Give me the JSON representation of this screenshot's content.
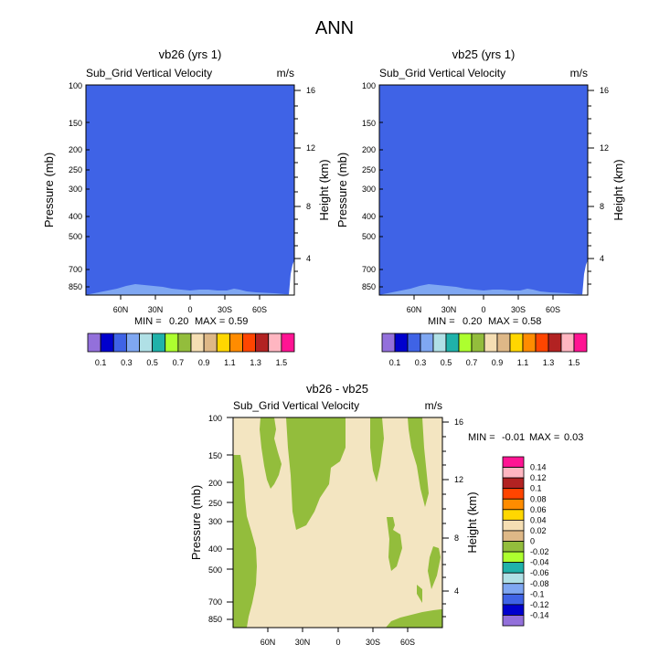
{
  "title": "ANN",
  "palette_colors": {
    "deep_blue_fill": "#3f63e6",
    "light_blue": "#7fa7f2",
    "diff_background": "#f3e5c1",
    "diff_green": "#93bd3c",
    "white": "#ffffff"
  },
  "chart_data": [
    {
      "type": "heatmap",
      "panel": "top-left",
      "title": "vb26 (yrs 1)",
      "subtitle_left": "Sub_Grid Vertical Velocity",
      "units": "m/s",
      "ylabel_left": "Pressure (mb)",
      "ylabel_right": "Height (km)",
      "y_ticks_left": [
        "100",
        "150",
        "200",
        "250",
        "300",
        "400",
        "500",
        "700",
        "850"
      ],
      "y_ticks_right": [
        "16",
        "12",
        "8",
        "4"
      ],
      "x_ticks": [
        "60N",
        "30N",
        "0",
        "30S",
        "60S"
      ],
      "min_label": "MIN =",
      "min_value": "0.20",
      "max_label": "MAX =",
      "max_value": "0.59",
      "colorbar": {
        "colors": [
          "#9370db",
          "#0000cd",
          "#3f63e6",
          "#7fa7f2",
          "#b0e0e6",
          "#20b2aa",
          "#adff2f",
          "#93bd3c",
          "#f5deb3",
          "#deb887",
          "#ffd700",
          "#ff8c00",
          "#ff4500",
          "#b22222",
          "#ffb6c1",
          "#ff1493"
        ],
        "labels": [
          "0.1",
          "0.3",
          "0.5",
          "0.7",
          "0.9",
          "1.1",
          "1.3",
          "1.5"
        ]
      }
    },
    {
      "type": "heatmap",
      "panel": "top-right",
      "title": "vb25 (yrs 1)",
      "subtitle_left": "Sub_Grid Vertical Velocity",
      "units": "m/s",
      "ylabel_left": "Pressure (mb)",
      "ylabel_right": "Height (km)",
      "y_ticks_left": [
        "100",
        "150",
        "200",
        "250",
        "300",
        "400",
        "500",
        "700",
        "850"
      ],
      "y_ticks_right": [
        "16",
        "12",
        "8",
        "4"
      ],
      "x_ticks": [
        "60N",
        "30N",
        "0",
        "30S",
        "60S"
      ],
      "min_label": "MIN =",
      "min_value": "0.20",
      "max_label": "MAX =",
      "max_value": "0.58",
      "colorbar": {
        "colors": [
          "#9370db",
          "#0000cd",
          "#3f63e6",
          "#7fa7f2",
          "#b0e0e6",
          "#20b2aa",
          "#adff2f",
          "#93bd3c",
          "#f5deb3",
          "#deb887",
          "#ffd700",
          "#ff8c00",
          "#ff4500",
          "#b22222",
          "#ffb6c1",
          "#ff1493"
        ],
        "labels": [
          "0.1",
          "0.3",
          "0.5",
          "0.7",
          "0.9",
          "1.1",
          "1.3",
          "1.5"
        ]
      }
    },
    {
      "type": "heatmap",
      "panel": "bottom",
      "title": "vb26 - vb25",
      "subtitle_left": "Sub_Grid Vertical Velocity",
      "units": "m/s",
      "ylabel_left": "Pressure (mb)",
      "ylabel_right": "Height (km)",
      "y_ticks_left": [
        "100",
        "150",
        "200",
        "250",
        "300",
        "400",
        "500",
        "700",
        "850"
      ],
      "y_ticks_right": [
        "16",
        "12",
        "8",
        "4"
      ],
      "x_ticks": [
        "60N",
        "30N",
        "0",
        "30S",
        "60S"
      ],
      "min_label": "MIN =",
      "min_value": "-0.01",
      "max_label": "MAX =",
      "max_value": "0.03",
      "colorbar": {
        "colors": [
          "#ff1493",
          "#ffb6c1",
          "#b22222",
          "#ff4500",
          "#ff8c00",
          "#ffd700",
          "#f5deb3",
          "#deb887",
          "#93bd3c",
          "#adff2f",
          "#20b2aa",
          "#b0e0e6",
          "#7fa7f2",
          "#3f63e6",
          "#0000cd",
          "#9370db"
        ],
        "labels": [
          "0.14",
          "0.12",
          "0.1",
          "0.08",
          "0.06",
          "0.04",
          "0.02",
          "0",
          "-0.02",
          "-0.04",
          "-0.06",
          "-0.08",
          "-0.1",
          "-0.12",
          "-0.14"
        ]
      }
    }
  ]
}
